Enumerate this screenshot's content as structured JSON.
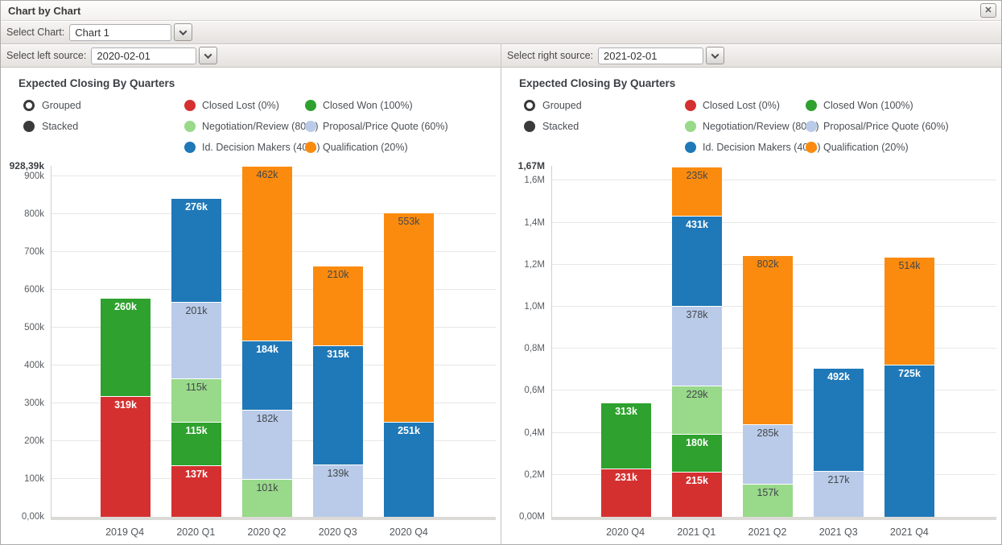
{
  "window": {
    "title": "Chart by Chart"
  },
  "icons": {
    "close": "✕"
  },
  "toolbar": {
    "select_chart_label": "Select Chart:",
    "select_chart_value": "Chart 1",
    "left_source_label": "Select left source:",
    "left_source_value": "2020-02-01",
    "right_source_label": "Select right source:",
    "right_source_value": "2021-02-01"
  },
  "mode_options": [
    {
      "label": "Grouped",
      "selected": false
    },
    {
      "label": "Stacked",
      "selected": true
    }
  ],
  "chart_data": [
    {
      "type": "bar",
      "stacked": true,
      "title": "Expected Closing By Quarters",
      "unit": "k",
      "ymax": 928.39,
      "ymax_label": "928,39k",
      "ticks": [
        {
          "v": 0,
          "label": "0,00k"
        },
        {
          "v": 100,
          "label": "100k"
        },
        {
          "v": 200,
          "label": "200k"
        },
        {
          "v": 300,
          "label": "300k"
        },
        {
          "v": 400,
          "label": "400k"
        },
        {
          "v": 500,
          "label": "500k"
        },
        {
          "v": 600,
          "label": "600k"
        },
        {
          "v": 700,
          "label": "700k"
        },
        {
          "v": 800,
          "label": "800k"
        },
        {
          "v": 900,
          "label": "900k"
        }
      ],
      "categories": [
        "2019 Q4",
        "2020 Q1",
        "2020 Q2",
        "2020 Q3",
        "2020 Q4"
      ],
      "series": [
        {
          "name": "Closed Lost (0%)",
          "color": "#d53030",
          "label_color": "#ffffff",
          "values": [
            319,
            137,
            0,
            0,
            0
          ]
        },
        {
          "name": "Closed Won (100%)",
          "color": "#2ea12e",
          "label_color": "#ffffff",
          "values": [
            260,
            115,
            0,
            0,
            0
          ]
        },
        {
          "name": "Negotiation/Review (80%)",
          "color": "#98d98a",
          "label_color": "#43474c",
          "values": [
            0,
            115,
            101,
            0,
            0
          ]
        },
        {
          "name": "Proposal/Price Quote (60%)",
          "color": "#b9cbe8",
          "label_color": "#43474c",
          "values": [
            0,
            201,
            182,
            139,
            0
          ]
        },
        {
          "name": "Id. Decision Makers (40%)",
          "color": "#1f78b7",
          "label_color": "#ffffff",
          "values": [
            0,
            276,
            184,
            315,
            251
          ]
        },
        {
          "name": "Qualification (20%)",
          "color": "#fb8b0f",
          "label_color": "#43474c",
          "values": [
            0,
            0,
            462,
            210,
            553
          ]
        }
      ]
    },
    {
      "type": "bar",
      "stacked": true,
      "title": "Expected Closing By Quarters",
      "unit": "k",
      "ymax": 1670,
      "ymax_label": "1,67M",
      "ticks": [
        {
          "v": 0,
          "label": "0,00M"
        },
        {
          "v": 200,
          "label": "0,2M"
        },
        {
          "v": 400,
          "label": "0,4M"
        },
        {
          "v": 600,
          "label": "0,6M"
        },
        {
          "v": 800,
          "label": "0,8M"
        },
        {
          "v": 1000,
          "label": "1,0M"
        },
        {
          "v": 1200,
          "label": "1,2M"
        },
        {
          "v": 1400,
          "label": "1,4M"
        },
        {
          "v": 1600,
          "label": "1,6M"
        }
      ],
      "categories": [
        "2020 Q4",
        "2021 Q1",
        "2021 Q2",
        "2021 Q3",
        "2021 Q4"
      ],
      "series": [
        {
          "name": "Closed Lost (0%)",
          "color": "#d53030",
          "label_color": "#ffffff",
          "values": [
            231,
            215,
            0,
            0,
            0
          ]
        },
        {
          "name": "Closed Won (100%)",
          "color": "#2ea12e",
          "label_color": "#ffffff",
          "values": [
            313,
            180,
            0,
            0,
            0
          ]
        },
        {
          "name": "Negotiation/Review (80%)",
          "color": "#98d98a",
          "label_color": "#43474c",
          "values": [
            0,
            229,
            157,
            0,
            0
          ]
        },
        {
          "name": "Proposal/Price Quote (60%)",
          "color": "#b9cbe8",
          "label_color": "#43474c",
          "values": [
            0,
            378,
            285,
            217,
            0
          ]
        },
        {
          "name": "Id. Decision Makers (40%)",
          "color": "#1f78b7",
          "label_color": "#ffffff",
          "values": [
            0,
            431,
            0,
            492,
            725
          ]
        },
        {
          "name": "Qualification (20%)",
          "color": "#fb8b0f",
          "label_color": "#43474c",
          "values": [
            0,
            235,
            802,
            0,
            514
          ]
        }
      ]
    }
  ]
}
